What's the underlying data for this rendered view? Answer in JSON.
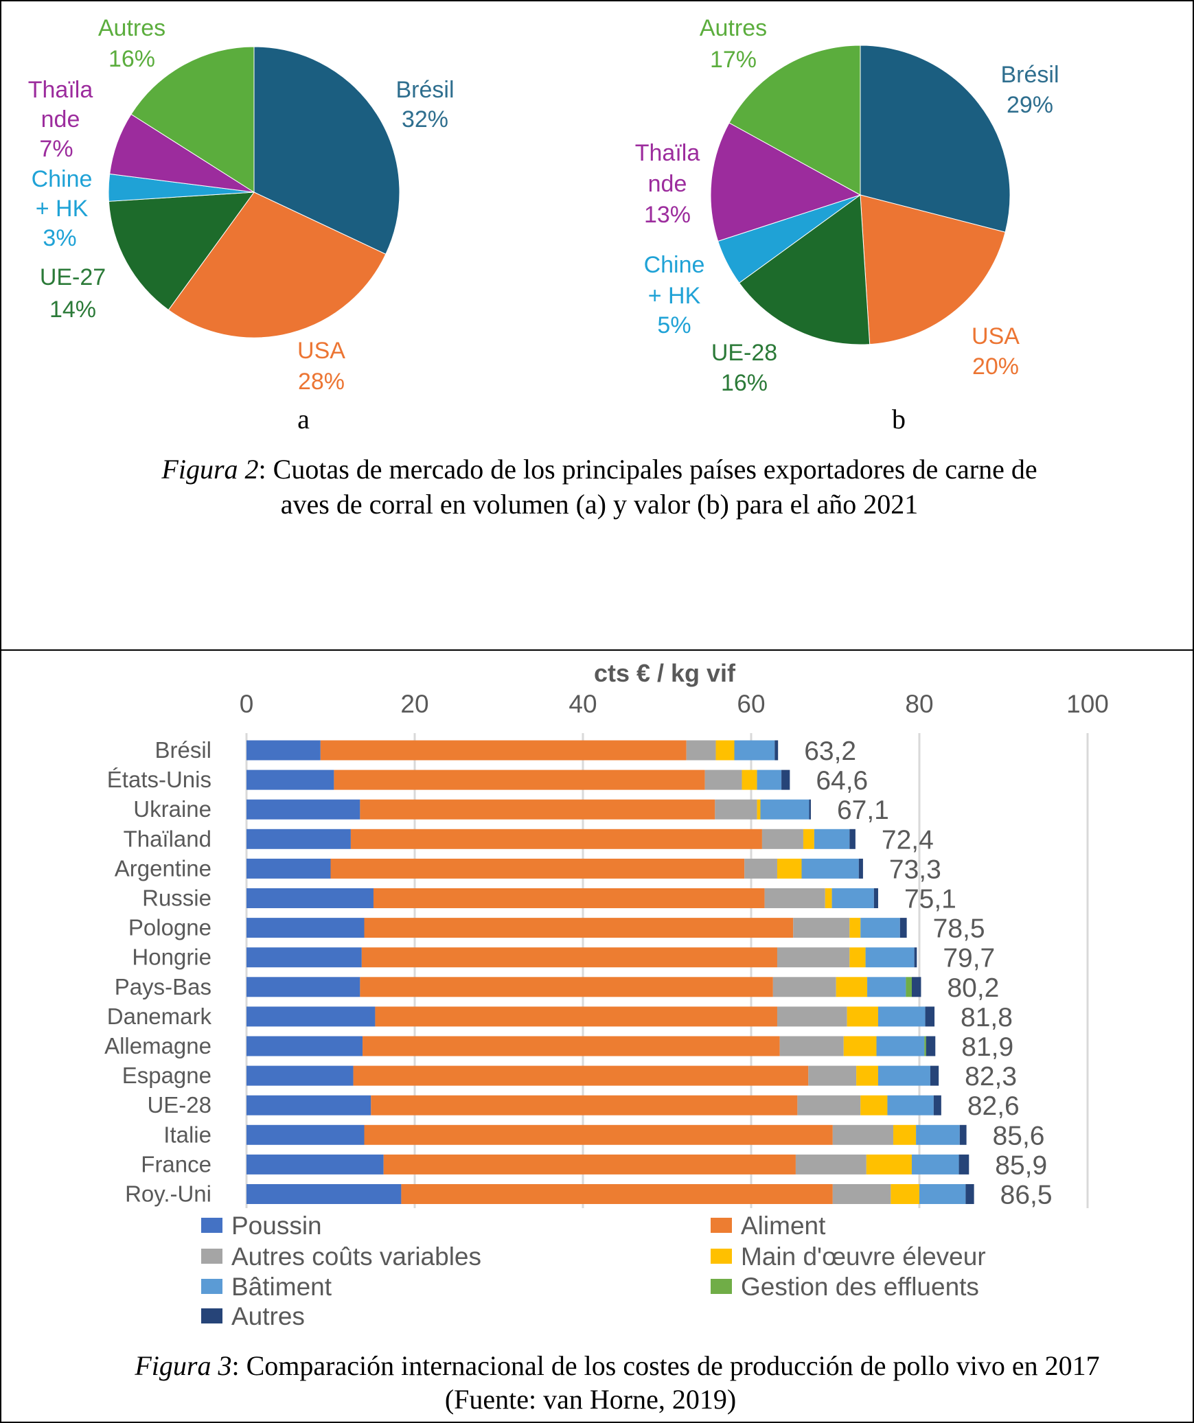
{
  "figure2": {
    "caption_prefix": "Figura 2",
    "caption_line1": ": Cuotas de mercado de los principales países exportadores de carne de",
    "caption_line2": "aves de corral en volumen (a) y valor (b) para el año 2021",
    "panel_a_label": "a",
    "panel_b_label": "b"
  },
  "figure3": {
    "caption_prefix": "Figura 3",
    "caption_line1": ": Comparación internacional de los costes de producción de pollo vivo en 2017",
    "caption_line2": "(Fuente: van Horne, 2019)"
  },
  "chart_data": [
    {
      "type": "pie",
      "panel": "a",
      "start": "12 o'clock, clockwise",
      "slices": [
        {
          "name": "Brésil",
          "value": 32,
          "label": "32%",
          "color": "#1B5E80"
        },
        {
          "name": "USA",
          "value": 28,
          "label": "28%",
          "color": "#EC7533"
        },
        {
          "name": "UE-27",
          "value": 14,
          "label": "14%",
          "color": "#1D6B2B"
        },
        {
          "name": "Chine + HK",
          "value": 3,
          "label": "3%",
          "color": "#1FA2D6"
        },
        {
          "name": "Thaïlande",
          "value": 7,
          "label": "7%",
          "color": "#9C2C9D"
        },
        {
          "name": "Autres",
          "value": 16,
          "label": "16%",
          "color": "#5BAD3D"
        }
      ]
    },
    {
      "type": "pie",
      "panel": "b",
      "start": "12 o'clock, clockwise",
      "slices": [
        {
          "name": "Brésil",
          "value": 29,
          "label": "29%",
          "color": "#1B5E80"
        },
        {
          "name": "USA",
          "value": 20,
          "label": "20%",
          "color": "#EC7533"
        },
        {
          "name": "UE-28",
          "value": 16,
          "label": "16%",
          "color": "#1D6B2B"
        },
        {
          "name": "Chine + HK",
          "value": 5,
          "label": "5%",
          "color": "#1FA2D6"
        },
        {
          "name": "Thaïlande",
          "value": 13,
          "label": "13%",
          "color": "#9C2C9D"
        },
        {
          "name": "Autres",
          "value": 17,
          "label": "17%",
          "color": "#5BAD3D"
        }
      ]
    },
    {
      "type": "bar",
      "orientation": "horizontal",
      "stacked": true,
      "xlabel": "cts € / kg vif",
      "xlim": [
        0,
        100
      ],
      "xticks": [
        "0",
        "20",
        "40",
        "60",
        "80",
        "100"
      ],
      "grid": true,
      "legend": "bottom",
      "categories": [
        "Brésil",
        "États-Unis",
        "Ukraine",
        "Thaïland",
        "Argentine",
        "Russie",
        "Pologne",
        "Hongrie",
        "Pays-Bas",
        "Danemark",
        "Allemagne",
        "Espagne",
        "UE-28",
        "Italie",
        "France",
        "Roy.-Uni"
      ],
      "totals": [
        "63,2",
        "64,6",
        "67,1",
        "72,4",
        "73,3",
        "75,1",
        "78,5",
        "79,7",
        "80,2",
        "81,8",
        "81,9",
        "82,3",
        "82,6",
        "85,6",
        "85,9",
        "86,5"
      ],
      "series": [
        {
          "name": "Poussin",
          "color": "#4472C4",
          "values": [
            8.8,
            10.4,
            13.5,
            12.4,
            10.0,
            15.1,
            14.0,
            13.7,
            13.5,
            15.3,
            13.8,
            12.7,
            14.8,
            14.0,
            16.3,
            18.4
          ]
        },
        {
          "name": "Aliment",
          "color": "#ED7D31",
          "values": [
            43.5,
            44.1,
            42.2,
            48.9,
            49.2,
            46.5,
            51.0,
            49.4,
            49.1,
            47.8,
            49.6,
            54.1,
            50.7,
            55.7,
            49.0,
            51.3
          ]
        },
        {
          "name": "Autres coûts variables",
          "color": "#A5A5A5",
          "values": [
            3.5,
            4.4,
            5.0,
            4.9,
            3.9,
            7.2,
            6.7,
            8.6,
            7.5,
            8.3,
            7.6,
            5.7,
            7.5,
            7.2,
            8.4,
            6.9
          ]
        },
        {
          "name": "Main d'œuvre éleveur",
          "color": "#FFC000",
          "values": [
            2.2,
            1.8,
            0.4,
            1.3,
            2.9,
            0.8,
            1.3,
            1.9,
            3.7,
            3.7,
            3.9,
            2.6,
            3.2,
            2.7,
            5.4,
            3.4
          ]
        },
        {
          "name": "Bâtiment",
          "color": "#5B9BD5",
          "values": [
            4.8,
            2.9,
            5.8,
            4.2,
            6.8,
            5.0,
            4.7,
            5.8,
            4.6,
            5.6,
            5.7,
            6.2,
            5.5,
            5.2,
            5.6,
            5.5
          ]
        },
        {
          "name": "Gestion des effluents",
          "color": "#70AD47",
          "values": [
            0,
            0,
            0,
            0,
            0,
            0,
            0,
            0,
            0.7,
            0,
            0.2,
            0,
            0,
            0,
            0,
            0
          ]
        },
        {
          "name": "Autres",
          "color": "#264478",
          "values": [
            0.4,
            1.0,
            0.2,
            0.7,
            0.5,
            0.5,
            0.8,
            0.3,
            1.1,
            1.1,
            1.1,
            1.0,
            0.9,
            0.8,
            1.2,
            1.0
          ]
        }
      ]
    }
  ]
}
